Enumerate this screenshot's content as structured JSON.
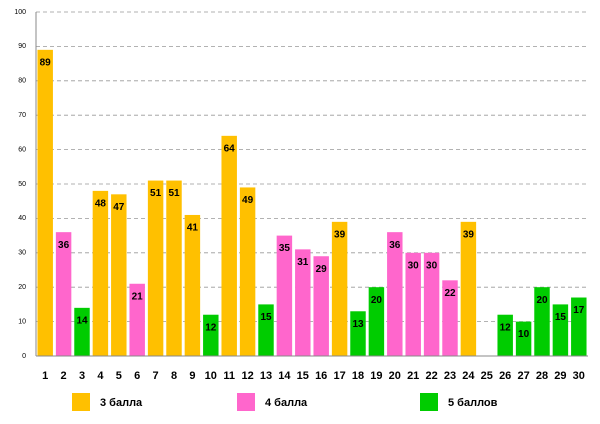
{
  "chart_data": {
    "type": "bar",
    "categories": [
      "1",
      "2",
      "3",
      "4",
      "5",
      "6",
      "7",
      "8",
      "9",
      "10",
      "11",
      "12",
      "13",
      "14",
      "15",
      "16",
      "17",
      "18",
      "19",
      "20",
      "21",
      "22",
      "23",
      "24",
      "25",
      "26",
      "27",
      "28",
      "29",
      "30"
    ],
    "series": [
      {
        "name": "3 балла",
        "color": "#ffc000",
        "values": [
          89,
          null,
          null,
          48,
          47,
          null,
          51,
          51,
          41,
          null,
          64,
          49,
          null,
          null,
          null,
          null,
          39,
          null,
          null,
          null,
          null,
          null,
          null,
          39,
          null,
          null,
          null,
          null,
          null,
          null
        ]
      },
      {
        "name": "4 балла",
        "color": "#ff66cc",
        "values": [
          null,
          36,
          null,
          null,
          null,
          21,
          null,
          null,
          null,
          null,
          null,
          null,
          null,
          35,
          31,
          29,
          null,
          null,
          null,
          36,
          30,
          30,
          22,
          null,
          null,
          null,
          null,
          null,
          null,
          null
        ]
      },
      {
        "name": "5 баллов",
        "color": "#00cc00",
        "values": [
          null,
          null,
          14,
          null,
          null,
          null,
          null,
          null,
          null,
          12,
          null,
          null,
          15,
          null,
          null,
          null,
          null,
          13,
          20,
          null,
          null,
          null,
          null,
          null,
          null,
          12,
          10,
          20,
          15,
          17
        ]
      }
    ],
    "ylim": [
      0,
      100
    ],
    "yticks": [
      0,
      10,
      20,
      30,
      40,
      50,
      60,
      70,
      80,
      90,
      100
    ],
    "grid": true,
    "legend": "bottom"
  }
}
